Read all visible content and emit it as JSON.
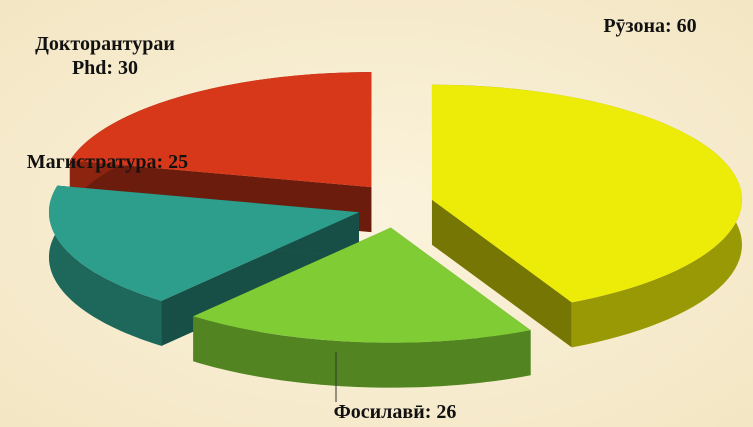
{
  "chart_data": {
    "type": "pie3d",
    "values": [
      60,
      26,
      25,
      30
    ],
    "value_labels": [
      "Рӯзона:  60",
      "Фосилавӣ: 26",
      "Магистратура: 25",
      "Докторантураи Phd: 30"
    ],
    "colors": [
      "#ecec08",
      "#7fcc34",
      "#2e9e8c",
      "#d8381a"
    ]
  }
}
